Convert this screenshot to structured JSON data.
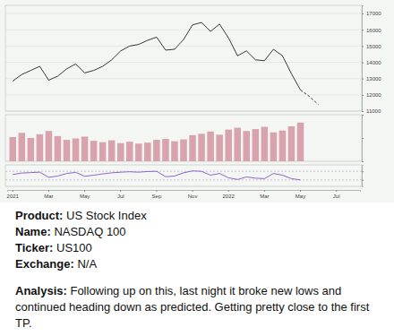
{
  "chart_data": [
    {
      "type": "line",
      "categories": [
        "2021",
        null,
        null,
        null,
        "Mar",
        null,
        null,
        null,
        "May",
        null,
        null,
        null,
        "Jul",
        null,
        null,
        null,
        "Sep",
        null,
        null,
        null,
        "Nov",
        null,
        null,
        null,
        "2022",
        null,
        null,
        null,
        "Mar",
        null,
        null,
        null,
        "May",
        null,
        null,
        null,
        "Jul",
        null,
        null
      ],
      "series": [
        {
          "color": "#222222",
          "line_style": "solid",
          "values": [
            12850,
            13250,
            13500,
            13750,
            12900,
            13150,
            13600,
            13900,
            13350,
            13500,
            13750,
            14150,
            14700,
            15000,
            15100,
            15350,
            15550,
            14750,
            14800,
            15400,
            16300,
            16450,
            15900,
            16350,
            15500,
            14400,
            14700,
            14150,
            14100,
            14800,
            14400,
            13300,
            12300,
            null,
            null,
            null,
            null,
            null,
            null
          ]
        },
        {
          "color": "#222222",
          "line_style": "dashed",
          "values": [
            null,
            null,
            null,
            null,
            null,
            null,
            null,
            null,
            null,
            null,
            null,
            null,
            null,
            null,
            null,
            null,
            null,
            null,
            null,
            null,
            null,
            null,
            null,
            null,
            null,
            null,
            null,
            null,
            null,
            null,
            null,
            null,
            12300,
            11900,
            11400,
            null,
            null,
            null,
            null
          ]
        }
      ],
      "ylim": [
        11000,
        17500
      ],
      "yticks": [
        11000,
        12000,
        13000,
        14000,
        15000,
        16000,
        17000
      ],
      "grid": true
    },
    {
      "type": "bar",
      "values": [
        5.2,
        6.1,
        5.0,
        5.8,
        6.5,
        5.4,
        4.6,
        4.9,
        5.3,
        4.4,
        4.1,
        4.5,
        3.9,
        4.2,
        3.8,
        4.0,
        4.6,
        4.8,
        4.3,
        4.7,
        5.6,
        5.9,
        6.4,
        5.7,
        6.8,
        7.2,
        6.5,
        6.9,
        7.4,
        6.2,
        6.6,
        7.5,
        8.3,
        null,
        null,
        null,
        null,
        null,
        null
      ],
      "color": "#d9a3ad",
      "ylim": [
        0,
        10
      ],
      "yticks": [
        0,
        5,
        10
      ],
      "tick_labels": false
    },
    {
      "type": "line",
      "values": [
        55,
        62,
        64,
        66,
        42,
        48,
        60,
        65,
        47,
        52,
        58,
        63,
        66,
        68,
        66,
        69,
        70,
        45,
        48,
        63,
        72,
        70,
        52,
        60,
        40,
        32,
        44,
        38,
        36,
        60,
        52,
        36,
        30,
        null,
        null,
        null,
        null,
        null,
        null
      ],
      "color": "#7e57c2",
      "ylim": [
        0,
        100
      ],
      "yticks": [
        30,
        70
      ],
      "grid": true,
      "tick_labels": false
    }
  ],
  "post": {
    "fields": [
      {
        "label": "Product:",
        "value": "US Stock Index"
      },
      {
        "label": "Name:",
        "value": "NASDAQ 100"
      },
      {
        "label": "Ticker:",
        "value": "US100"
      },
      {
        "label": "Exchange:",
        "value": "N/A"
      }
    ],
    "analysis": {
      "label": "Analysis:",
      "text": "Following up on this, last night it broke new lows and continued heading down as predicted. Getting pretty close to the first TP."
    }
  }
}
